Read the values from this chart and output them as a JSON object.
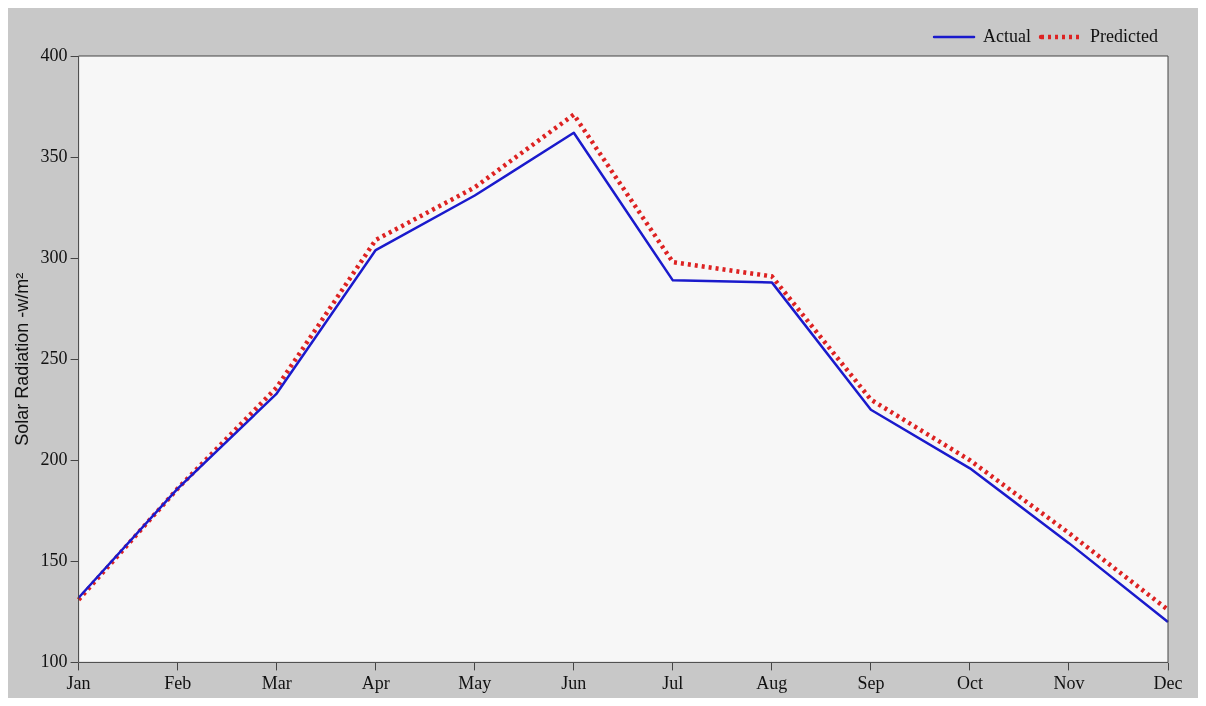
{
  "chart_data": {
    "type": "line",
    "ylabel": "Solar Radiation -w/m²",
    "categories": [
      "Jan",
      "Feb",
      "Mar",
      "Apr",
      "May",
      "Jun",
      "Jul",
      "Aug",
      "Sep",
      "Oct",
      "Nov",
      "Dec"
    ],
    "series": [
      {
        "name": "Actual",
        "color": "#1a1acc",
        "values": [
          132,
          186,
          233,
          304,
          331,
          362,
          289,
          288,
          225,
          196,
          159,
          120
        ],
        "line_style": "solid"
      },
      {
        "name": "Predicted",
        "color": "#dd2222",
        "values": [
          131,
          186,
          236,
          309,
          335,
          371,
          298,
          291,
          230,
          200,
          164,
          126
        ],
        "line_style": "dotted"
      }
    ],
    "ylim": [
      100,
      400
    ],
    "yticks": [
      100,
      150,
      200,
      250,
      300,
      350,
      400
    ],
    "grid": false,
    "legend": "top right",
    "marker": "none"
  }
}
